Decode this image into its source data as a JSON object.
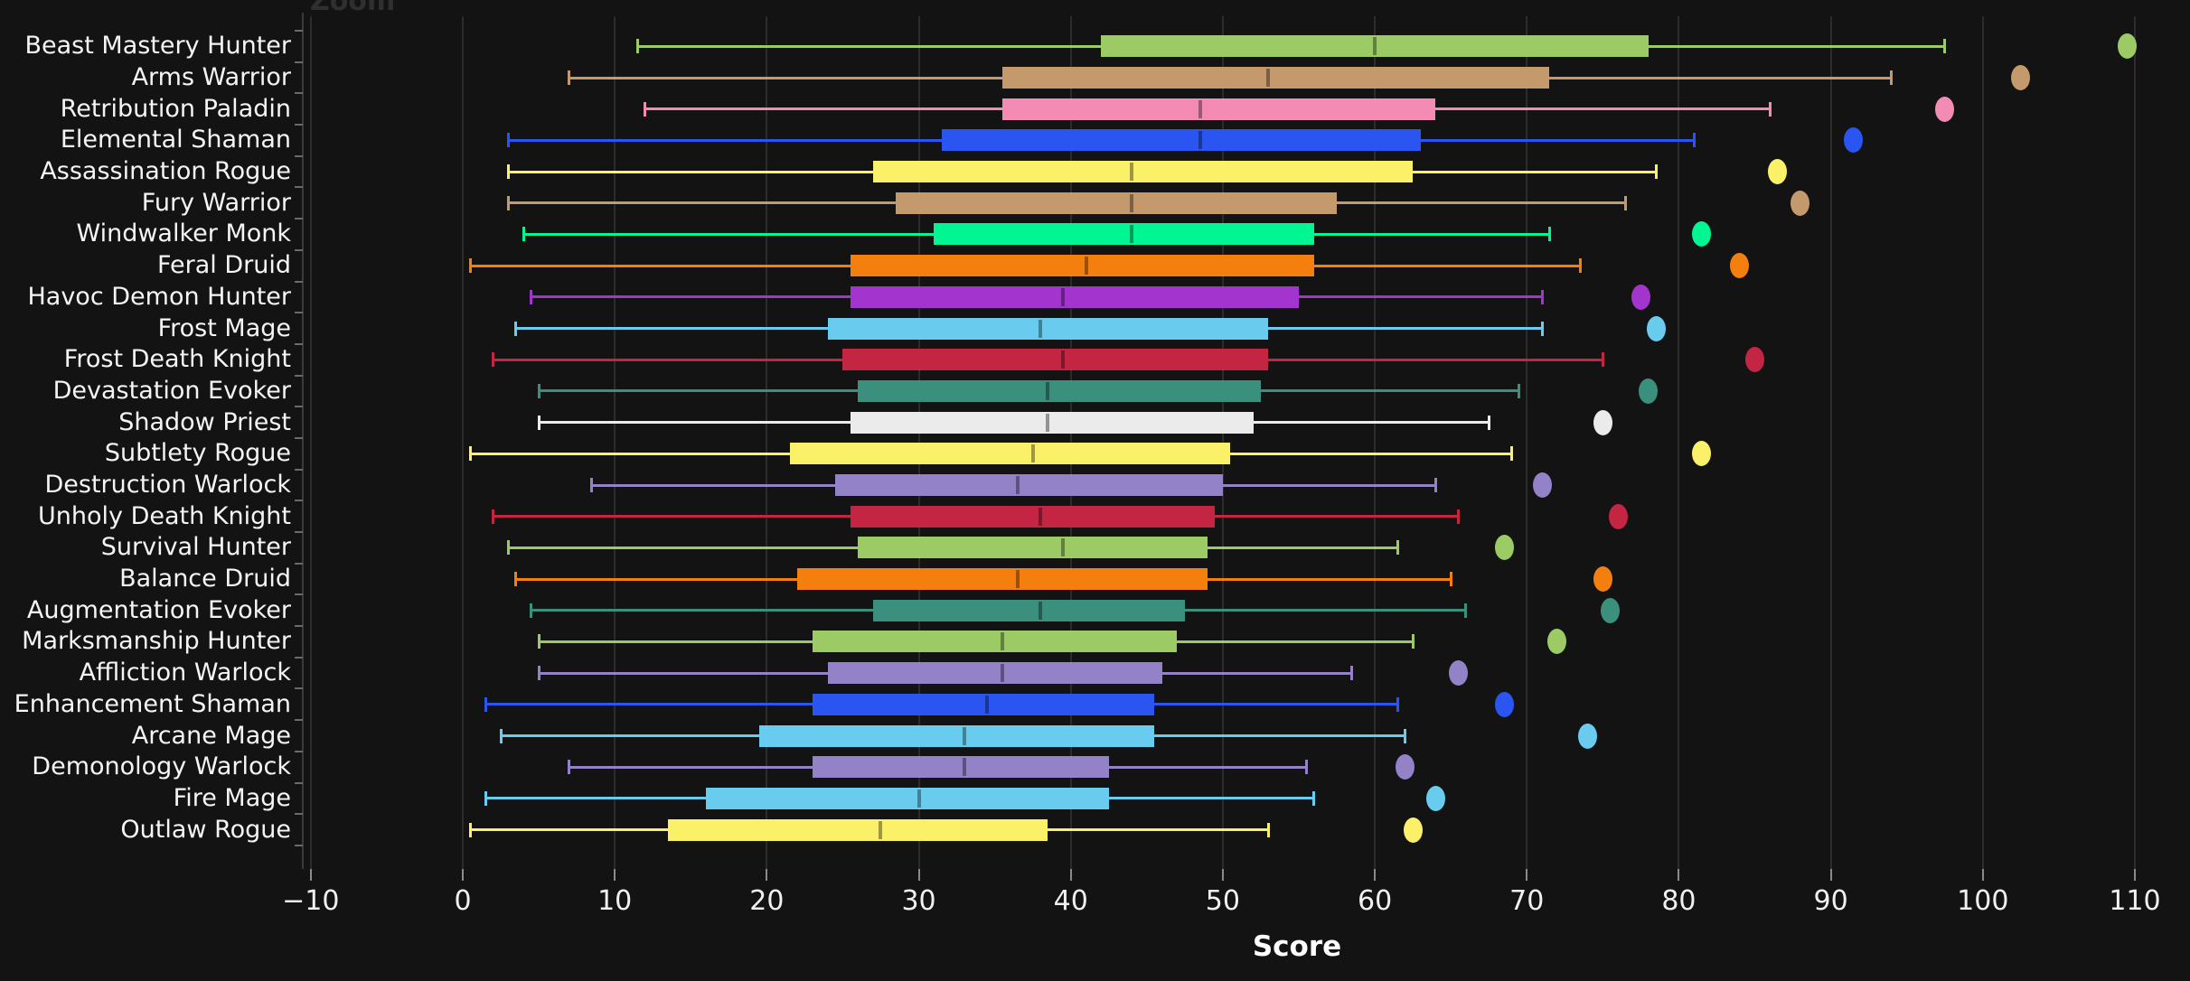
{
  "zoom_button": {
    "label": "Zoom"
  },
  "colors": {
    "background": "#131313",
    "grid": "#2c2c2c",
    "axis_text": "#f0f0f0",
    "category_text": "#f5f5f5",
    "tick_mark": "#8a8a8a",
    "zoom_label_text": "#2f2f2f"
  },
  "chart_data": {
    "type": "boxplot",
    "orientation": "horizontal",
    "title": "",
    "xlabel": "Score",
    "ylabel": "",
    "grid": true,
    "legend": false,
    "xlim": [
      -10.5,
      113.6
    ],
    "x_tick_values": [
      -10,
      0,
      10,
      20,
      30,
      40,
      50,
      60,
      70,
      80,
      90,
      100,
      110
    ],
    "x_tick_labels": [
      "−10",
      "0",
      "10",
      "20",
      "30",
      "40",
      "50",
      "60",
      "70",
      "80",
      "90",
      "100",
      "110"
    ],
    "categories": [
      "Beast Mastery Hunter",
      "Arms Warrior",
      "Retribution Paladin",
      "Elemental Shaman",
      "Assassination Rogue",
      "Fury Warrior",
      "Windwalker Monk",
      "Feral Druid",
      "Havoc Demon Hunter",
      "Frost Mage",
      "Frost Death Knight",
      "Devastation Evoker",
      "Shadow Priest",
      "Subtlety Rogue",
      "Destruction Warlock",
      "Unholy Death Knight",
      "Survival Hunter",
      "Balance Druid",
      "Augmentation Evoker",
      "Marksmanship Hunter",
      "Affliction Warlock",
      "Enhancement Shaman",
      "Arcane Mage",
      "Demonology Warlock",
      "Fire Mage",
      "Outlaw Rogue"
    ],
    "series": [
      {
        "name": "Beast Mastery Hunter",
        "color": "#9ccb65",
        "min": 11.5,
        "q1": 42.0,
        "median": 60.0,
        "q3": 78.0,
        "max": 97.5,
        "outlier": 109.5
      },
      {
        "name": "Arms Warrior",
        "color": "#c49a6c",
        "min": 7.0,
        "q1": 35.5,
        "median": 53.0,
        "q3": 71.5,
        "max": 94.0,
        "outlier": 102.5
      },
      {
        "name": "Retribution Paladin",
        "color": "#f48bb4",
        "min": 12.0,
        "q1": 35.5,
        "median": 48.5,
        "q3": 64.0,
        "max": 86.0,
        "outlier": 97.5
      },
      {
        "name": "Elemental Shaman",
        "color": "#2b55f0",
        "min": 3.0,
        "q1": 31.5,
        "median": 48.5,
        "q3": 63.0,
        "max": 81.0,
        "outlier": 91.5
      },
      {
        "name": "Assassination Rogue",
        "color": "#fbf168",
        "min": 3.0,
        "q1": 27.0,
        "median": 44.0,
        "q3": 62.5,
        "max": 78.5,
        "outlier": 86.5
      },
      {
        "name": "Fury Warrior",
        "color": "#c49a6c",
        "min": 3.0,
        "q1": 28.5,
        "median": 44.0,
        "q3": 57.5,
        "max": 76.5,
        "outlier": 88.0
      },
      {
        "name": "Windwalker Monk",
        "color": "#00f593",
        "min": 4.0,
        "q1": 31.0,
        "median": 44.0,
        "q3": 56.0,
        "max": 71.5,
        "outlier": 81.5
      },
      {
        "name": "Feral Druid",
        "color": "#f57f0e",
        "min": 0.5,
        "q1": 25.5,
        "median": 41.0,
        "q3": 56.0,
        "max": 73.5,
        "outlier": 84.0
      },
      {
        "name": "Havoc Demon Hunter",
        "color": "#a335ce",
        "min": 4.5,
        "q1": 25.5,
        "median": 39.5,
        "q3": 55.0,
        "max": 71.0,
        "outlier": 77.5
      },
      {
        "name": "Frost Mage",
        "color": "#69ccee",
        "min": 3.5,
        "q1": 24.0,
        "median": 38.0,
        "q3": 53.0,
        "max": 71.0,
        "outlier": 78.5
      },
      {
        "name": "Frost Death Knight",
        "color": "#c32543",
        "min": 2.0,
        "q1": 25.0,
        "median": 39.5,
        "q3": 53.0,
        "max": 75.0,
        "outlier": 85.0
      },
      {
        "name": "Devastation Evoker",
        "color": "#3a907d",
        "min": 5.0,
        "q1": 26.0,
        "median": 38.5,
        "q3": 52.5,
        "max": 69.5,
        "outlier": 78.0
      },
      {
        "name": "Shadow Priest",
        "color": "#ebebeb",
        "min": 5.0,
        "q1": 25.5,
        "median": 38.5,
        "q3": 52.0,
        "max": 67.5,
        "outlier": 75.0
      },
      {
        "name": "Subtlety Rogue",
        "color": "#fbf168",
        "min": 0.5,
        "q1": 21.5,
        "median": 37.5,
        "q3": 50.5,
        "max": 69.0,
        "outlier": 81.5
      },
      {
        "name": "Destruction Warlock",
        "color": "#9482c9",
        "min": 8.5,
        "q1": 24.5,
        "median": 36.5,
        "q3": 50.0,
        "max": 64.0,
        "outlier": 71.0
      },
      {
        "name": "Unholy Death Knight",
        "color": "#c32543",
        "min": 2.0,
        "q1": 25.5,
        "median": 38.0,
        "q3": 49.5,
        "max": 65.5,
        "outlier": 76.0
      },
      {
        "name": "Survival Hunter",
        "color": "#9ccb65",
        "min": 3.0,
        "q1": 26.0,
        "median": 39.5,
        "q3": 49.0,
        "max": 61.5,
        "outlier": 68.5
      },
      {
        "name": "Balance Druid",
        "color": "#f57f0e",
        "min": 3.5,
        "q1": 22.0,
        "median": 36.5,
        "q3": 49.0,
        "max": 65.0,
        "outlier": 75.0
      },
      {
        "name": "Augmentation Evoker",
        "color": "#3a907d",
        "min": 4.5,
        "q1": 27.0,
        "median": 38.0,
        "q3": 47.5,
        "max": 66.0,
        "outlier": 75.5
      },
      {
        "name": "Marksmanship Hunter",
        "color": "#9ccb65",
        "min": 5.0,
        "q1": 23.0,
        "median": 35.5,
        "q3": 47.0,
        "max": 62.5,
        "outlier": 72.0
      },
      {
        "name": "Affliction Warlock",
        "color": "#9482c9",
        "min": 5.0,
        "q1": 24.0,
        "median": 35.5,
        "q3": 46.0,
        "max": 58.5,
        "outlier": 65.5
      },
      {
        "name": "Enhancement Shaman",
        "color": "#2b55f0",
        "min": 1.5,
        "q1": 23.0,
        "median": 34.5,
        "q3": 45.5,
        "max": 61.5,
        "outlier": 68.5
      },
      {
        "name": "Arcane Mage",
        "color": "#69ccee",
        "min": 2.5,
        "q1": 19.5,
        "median": 33.0,
        "q3": 45.5,
        "max": 62.0,
        "outlier": 74.0
      },
      {
        "name": "Demonology Warlock",
        "color": "#9482c9",
        "min": 7.0,
        "q1": 23.0,
        "median": 33.0,
        "q3": 42.5,
        "max": 55.5,
        "outlier": 62.0
      },
      {
        "name": "Fire Mage",
        "color": "#69ccee",
        "min": 1.5,
        "q1": 16.0,
        "median": 30.0,
        "q3": 42.5,
        "max": 56.0,
        "outlier": 64.0
      },
      {
        "name": "Outlaw Rogue",
        "color": "#fbf168",
        "min": 0.5,
        "q1": 13.5,
        "median": 27.5,
        "q3": 38.5,
        "max": 53.0,
        "outlier": 62.5
      }
    ]
  }
}
